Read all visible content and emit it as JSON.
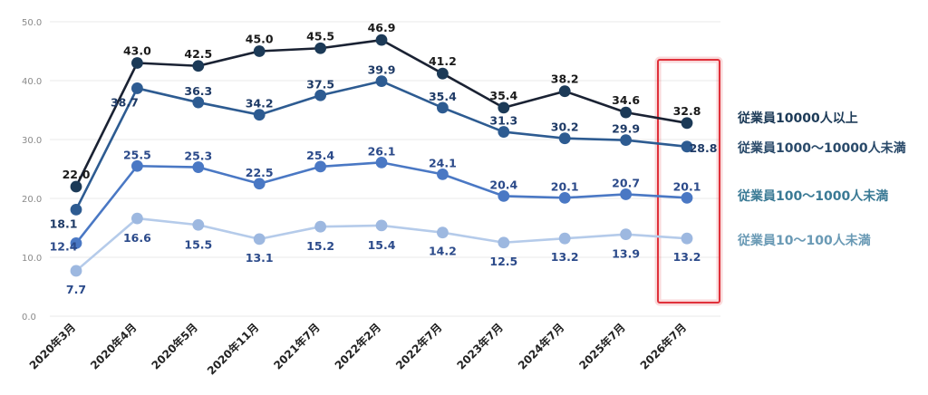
{
  "chart_data": {
    "type": "line",
    "title": "",
    "xlabel": "",
    "ylabel": "",
    "ylim": [
      0,
      50
    ],
    "yticks": [
      "0.0",
      "10.0",
      "20.0",
      "30.0",
      "40.0",
      "50.0"
    ],
    "grid": true,
    "legend": "right",
    "categories": [
      "2020年3月",
      "2020年4月",
      "2020年5月",
      "2020年11月",
      "2021年7月",
      "2022年2月",
      "2022年7月",
      "2023年7月",
      "2024年7月",
      "2025年7月",
      "2026年7月"
    ],
    "series": [
      {
        "name": "従業員10000人以上",
        "color": "#1c3a57",
        "line_color": "#1a2233",
        "label_color": "#1a1a1a",
        "legend_color": "#1c3a57",
        "values": [
          22.0,
          43.0,
          42.5,
          45.0,
          45.5,
          46.9,
          41.2,
          35.4,
          38.2,
          34.6,
          32.8
        ],
        "labels": [
          "22.0",
          "43.0",
          "42.5",
          "45.0",
          "45.5",
          "46.9",
          "41.2",
          "35.4",
          "38.2",
          "34.6",
          "32.8"
        ]
      },
      {
        "name": "従業員1000〜10000人未満",
        "color": "#2d5b91",
        "line_color": "#2d5b91",
        "label_color": "#1e3a66",
        "legend_color": "#2a4a6a",
        "values": [
          18.1,
          38.7,
          36.3,
          34.2,
          37.5,
          39.9,
          35.4,
          31.3,
          30.2,
          29.9,
          28.8
        ],
        "labels": [
          "18.1",
          "38.7",
          "36.3",
          "34.2",
          "37.5",
          "39.9",
          "35.4",
          "31.3",
          "30.2",
          "29.9",
          "28.8"
        ]
      },
      {
        "name": "従業員100〜1000人未満",
        "color": "#4a78c4",
        "line_color": "#4a78c4",
        "label_color": "#2b4a8a",
        "legend_color": "#3a7a95",
        "values": [
          12.4,
          25.5,
          25.3,
          22.5,
          25.4,
          26.1,
          24.1,
          20.4,
          20.1,
          20.7,
          20.1
        ],
        "labels": [
          "12.4",
          "25.5",
          "25.3",
          "22.5",
          "25.4",
          "26.1",
          "24.1",
          "20.4",
          "20.1",
          "20.7",
          "20.1"
        ]
      },
      {
        "name": "従業員10〜100人未満",
        "color": "#9db8e0",
        "line_color": "#b5cbea",
        "label_color": "#2b4a8a",
        "legend_color": "#6a9ab5",
        "values": [
          7.7,
          16.6,
          15.5,
          13.1,
          15.2,
          15.4,
          14.2,
          12.5,
          13.2,
          13.9,
          13.2
        ],
        "labels": [
          "7.7",
          "16.6",
          "15.5",
          "13.1",
          "15.2",
          "15.4",
          "14.2",
          "12.5",
          "13.2",
          "13.9",
          "13.2"
        ]
      }
    ],
    "highlight_category": "2026年7月",
    "highlight_color": "#e0303a"
  }
}
